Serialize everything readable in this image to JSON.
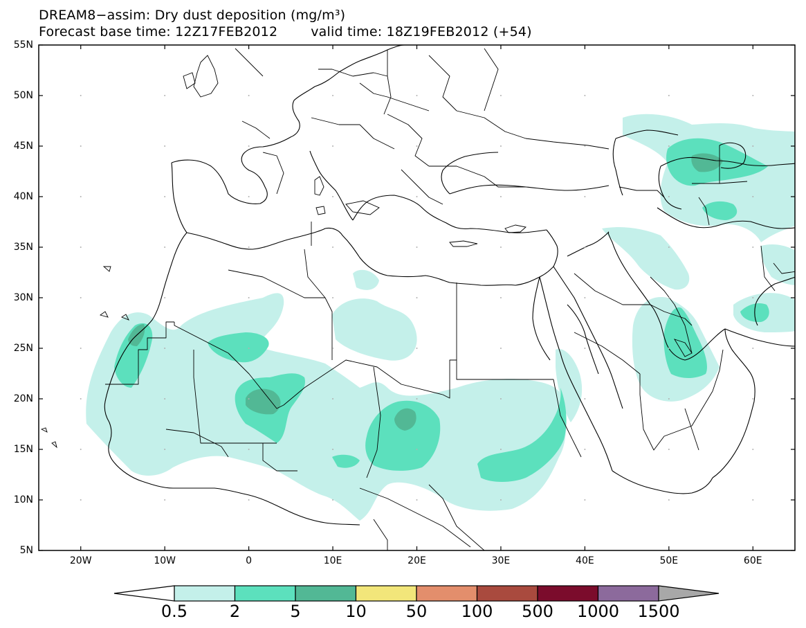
{
  "title": {
    "line1": "DREAM8−assim: Dry dust deposition (mg/m³)",
    "base_time": "Forecast base time: 12Z17FEB2012",
    "valid_time": "valid time: 18Z19FEB2012 (+54)"
  },
  "map": {
    "lon_range": [
      -25,
      65
    ],
    "lat_range": [
      5,
      55
    ],
    "grid": "dotted",
    "lat_labels": [
      {
        "lat": 55,
        "label": "55N"
      },
      {
        "lat": 50,
        "label": "50N"
      },
      {
        "lat": 45,
        "label": "45N"
      },
      {
        "lat": 40,
        "label": "40N"
      },
      {
        "lat": 35,
        "label": "35N"
      },
      {
        "lat": 30,
        "label": "30N"
      },
      {
        "lat": 25,
        "label": "25N"
      },
      {
        "lat": 20,
        "label": "20N"
      },
      {
        "lat": 15,
        "label": "15N"
      },
      {
        "lat": 10,
        "label": "10N"
      },
      {
        "lat": 5,
        "label": "5N"
      }
    ],
    "lon_labels": [
      {
        "lon": -20,
        "label": "20W"
      },
      {
        "lon": -10,
        "label": "10W"
      },
      {
        "lon": 0,
        "label": "0"
      },
      {
        "lon": 10,
        "label": "10E"
      },
      {
        "lon": 20,
        "label": "20E"
      },
      {
        "lon": 30,
        "label": "30E"
      },
      {
        "lon": 40,
        "label": "40E"
      },
      {
        "lon": 50,
        "label": "50E"
      },
      {
        "lon": 60,
        "label": "60E"
      }
    ]
  },
  "colorbar": {
    "colors": [
      "#c4f0ea",
      "#5ce0bd",
      "#52b895",
      "#f2e67a",
      "#e38e6c",
      "#a94a3e",
      "#7b0c2c",
      "#8c6a9c"
    ],
    "end_colors": {
      "low": "#ffffff",
      "high": "#a8a8a8"
    },
    "labels": [
      "0.5",
      "2",
      "5",
      "10",
      "50",
      "100",
      "500",
      "1000",
      "1500"
    ]
  }
}
